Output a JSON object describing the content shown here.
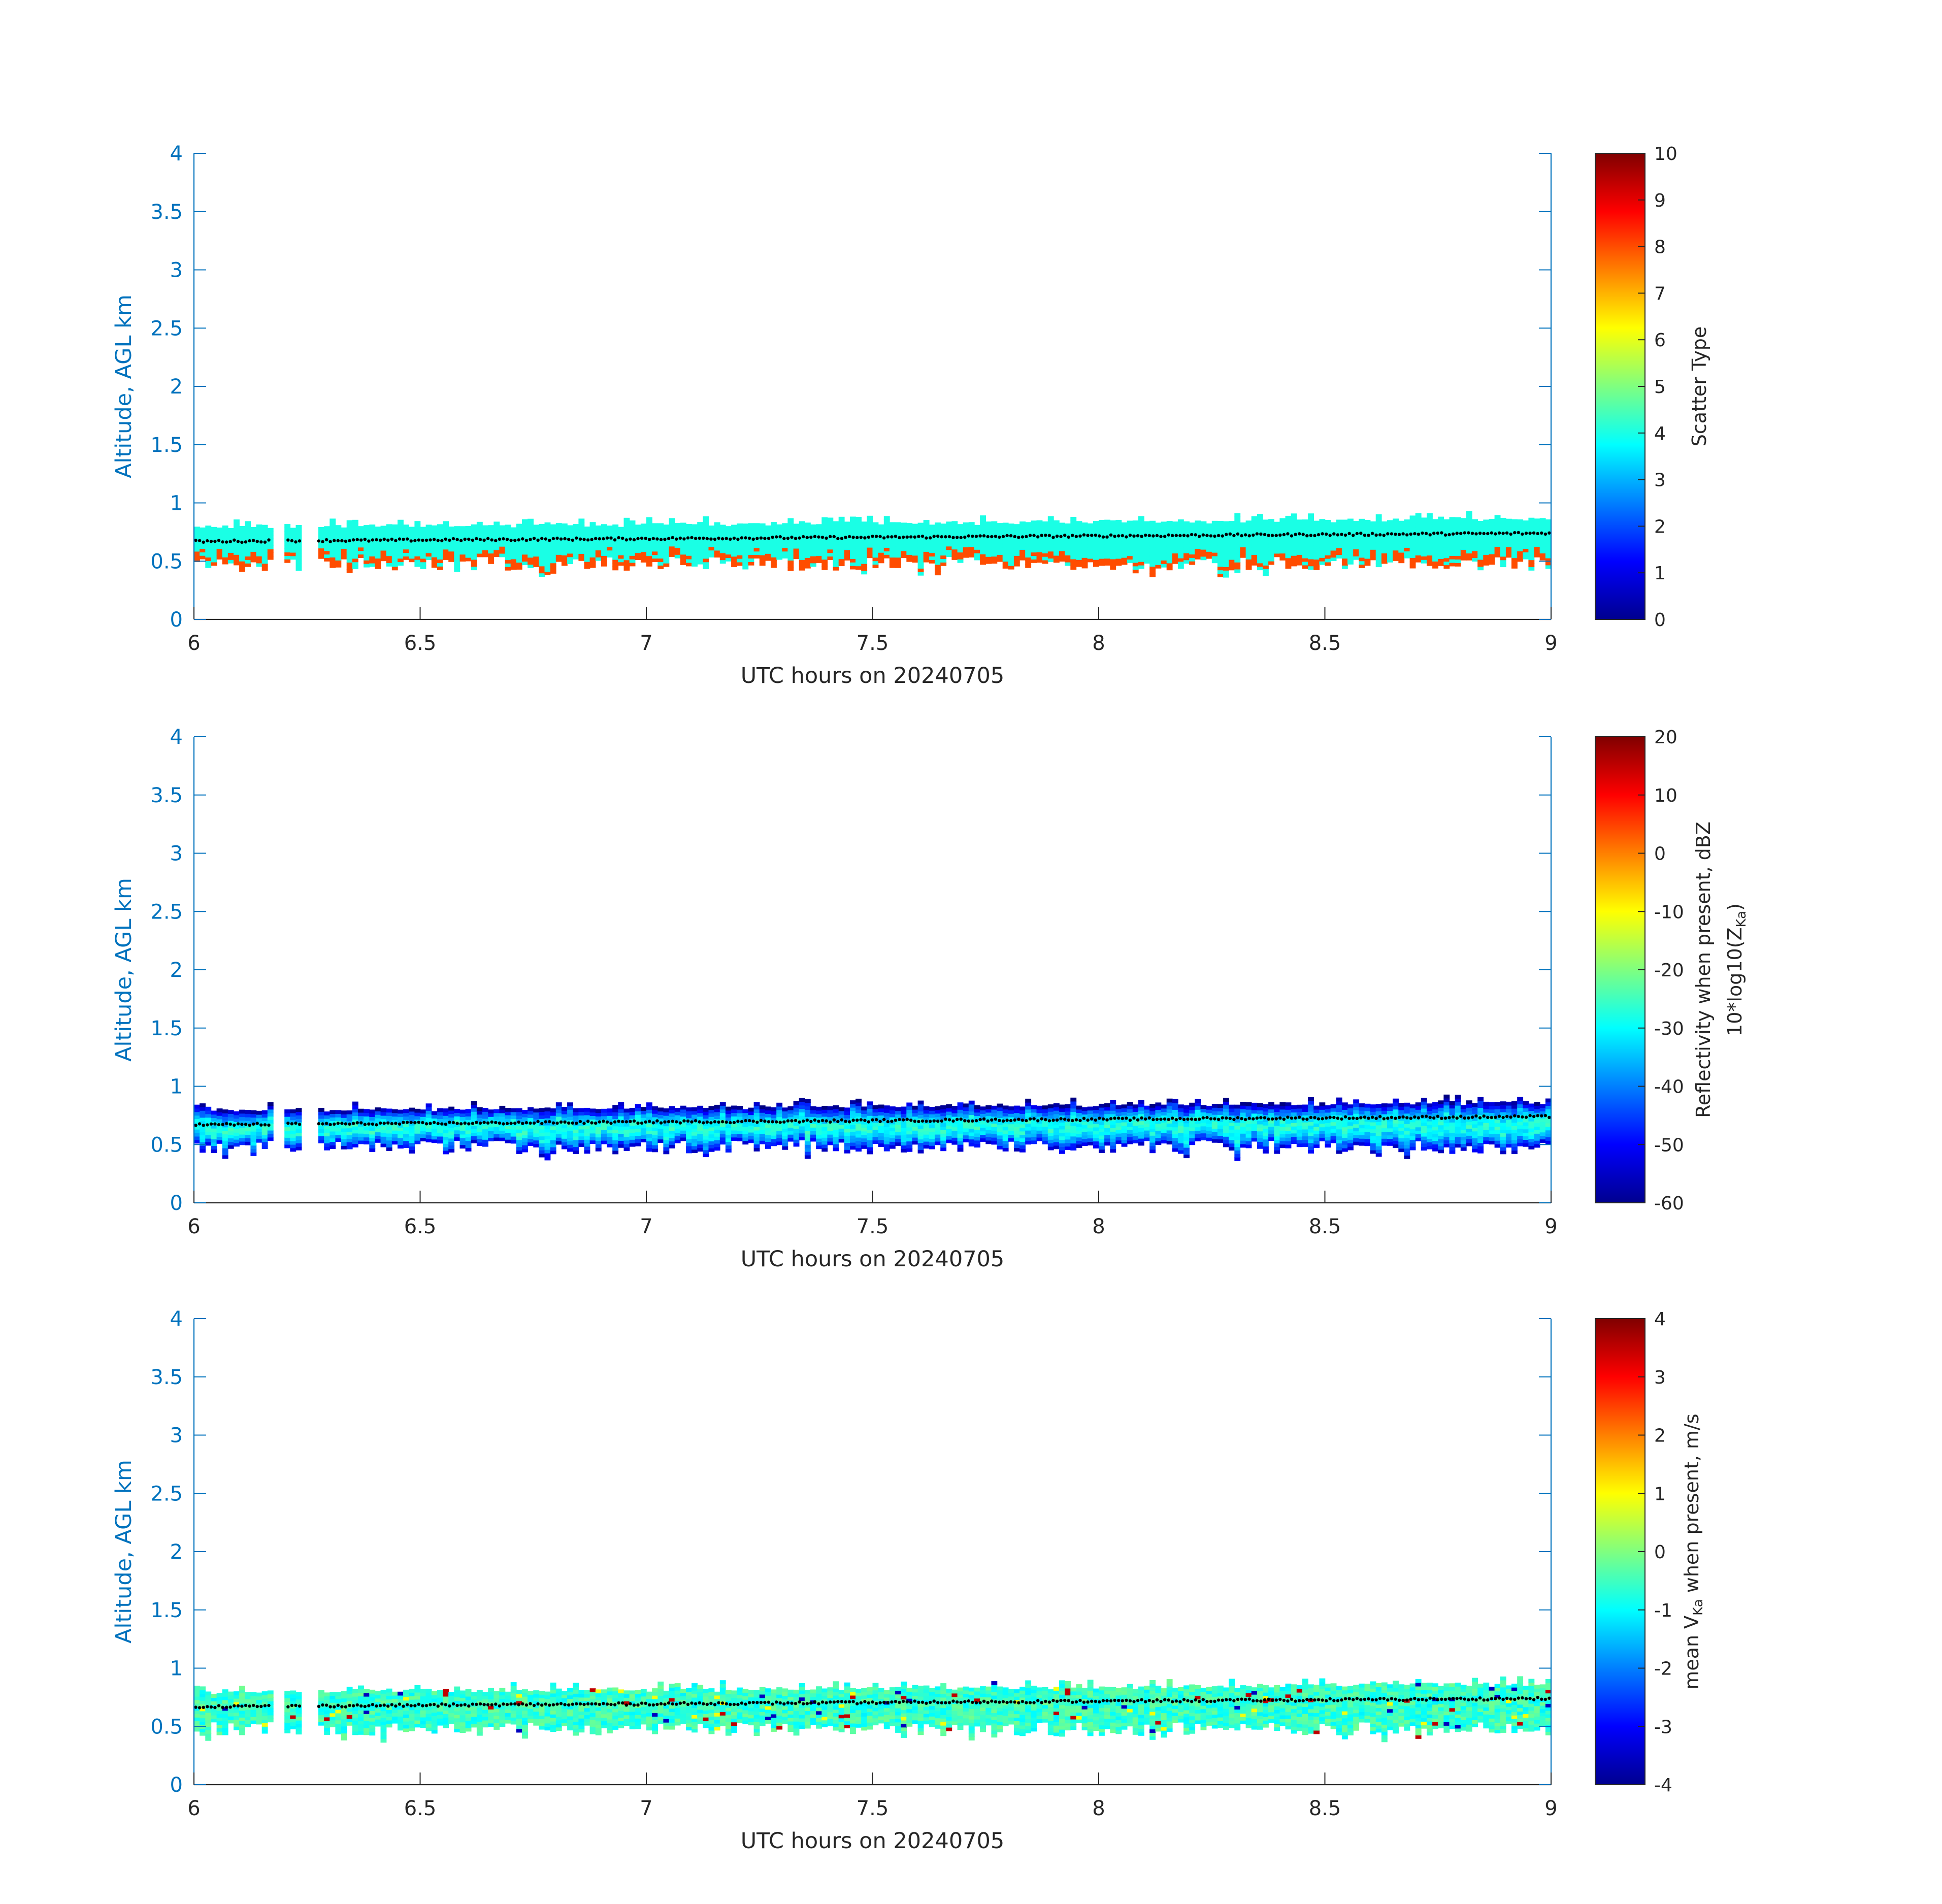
{
  "chart_data": [
    {
      "type": "heatmap",
      "panel": "scatter-type",
      "xlabel": "UTC hours on 20240705",
      "ylabel": "Altitude, AGL km",
      "xlim": [
        6,
        9
      ],
      "ylim": [
        0,
        4
      ],
      "xticks": [
        "6",
        "6.5",
        "7",
        "7.5",
        "8",
        "8.5",
        "9"
      ],
      "yticks": [
        "0",
        "0.5",
        "1",
        "1.5",
        "2",
        "2.5",
        "3",
        "3.5",
        "4"
      ],
      "colorbar": {
        "label": "Scatter Type",
        "label_line2": "",
        "clim": [
          0,
          10
        ],
        "ticks": [
          "0",
          "1",
          "2",
          "3",
          "4",
          "5",
          "6",
          "7",
          "8",
          "9",
          "10"
        ]
      },
      "colormap": "jet",
      "description_values": {
        "main_layer": {
          "value": 4,
          "altitude_range_km": [
            0.6,
            0.85
          ]
        },
        "lower_fringe": {
          "value": 8,
          "altitude_range_km": [
            0.43,
            0.6
          ]
        }
      },
      "gaps_utc": [
        [
          6.17,
          6.2
        ],
        [
          6.24,
          6.27
        ]
      ],
      "black_dotted_line": {
        "altitude_km_start": 0.67,
        "altitude_km_end": 0.74
      }
    },
    {
      "type": "heatmap",
      "panel": "reflectivity",
      "xlabel": "UTC hours on 20240705",
      "ylabel": "Altitude, AGL km",
      "xlim": [
        6,
        9
      ],
      "ylim": [
        0,
        4
      ],
      "xticks": [
        "6",
        "6.5",
        "7",
        "7.5",
        "8",
        "8.5",
        "9"
      ],
      "yticks": [
        "0",
        "0.5",
        "1",
        "1.5",
        "2",
        "2.5",
        "3",
        "3.5",
        "4"
      ],
      "colorbar": {
        "label": "Reflectivity when present, dBZ",
        "label_line2_prefix": "10*log10(Z",
        "label_line2_sub": "Ka",
        "label_line2_suffix": ")",
        "clim": [
          -60,
          20
        ],
        "ticks": [
          "-60",
          "-50",
          "-40",
          "-30",
          "-20",
          "-10",
          "0",
          "10",
          "20"
        ]
      },
      "colormap": "jet",
      "description_values": {
        "core_dbz": -30,
        "edge_dbz": -55,
        "altitude_range_km": [
          0.4,
          0.88
        ]
      },
      "gaps_utc": [
        [
          6.17,
          6.2
        ],
        [
          6.24,
          6.27
        ]
      ],
      "black_dotted_line": {
        "altitude_km_start": 0.67,
        "altitude_km_end": 0.74
      }
    },
    {
      "type": "heatmap",
      "panel": "doppler-velocity",
      "xlabel": "UTC hours on 20240705",
      "ylabel": "Altitude, AGL km",
      "xlim": [
        6,
        9
      ],
      "ylim": [
        0,
        4
      ],
      "xticks": [
        "6",
        "6.5",
        "7",
        "7.5",
        "8",
        "8.5",
        "9"
      ],
      "yticks": [
        "0",
        "0.5",
        "1",
        "1.5",
        "2",
        "2.5",
        "3",
        "3.5",
        "4"
      ],
      "colorbar": {
        "label_prefix": "mean V",
        "label_sub": "Ka",
        "label_suffix": " when present, m/s",
        "clim": [
          -4,
          4
        ],
        "ticks": [
          "-4",
          "-3",
          "-2",
          "-1",
          "0",
          "1",
          "2",
          "3",
          "4"
        ]
      },
      "colormap": "jet",
      "description_values": {
        "typical_velocity_ms": [
          -1.0,
          0.3
        ],
        "altitude_range_km": [
          0.4,
          0.88
        ]
      },
      "gaps_utc": [
        [
          6.17,
          6.2
        ],
        [
          6.24,
          6.27
        ]
      ],
      "black_dotted_line": {
        "altitude_km_start": 0.67,
        "altitude_km_end": 0.74
      }
    }
  ]
}
